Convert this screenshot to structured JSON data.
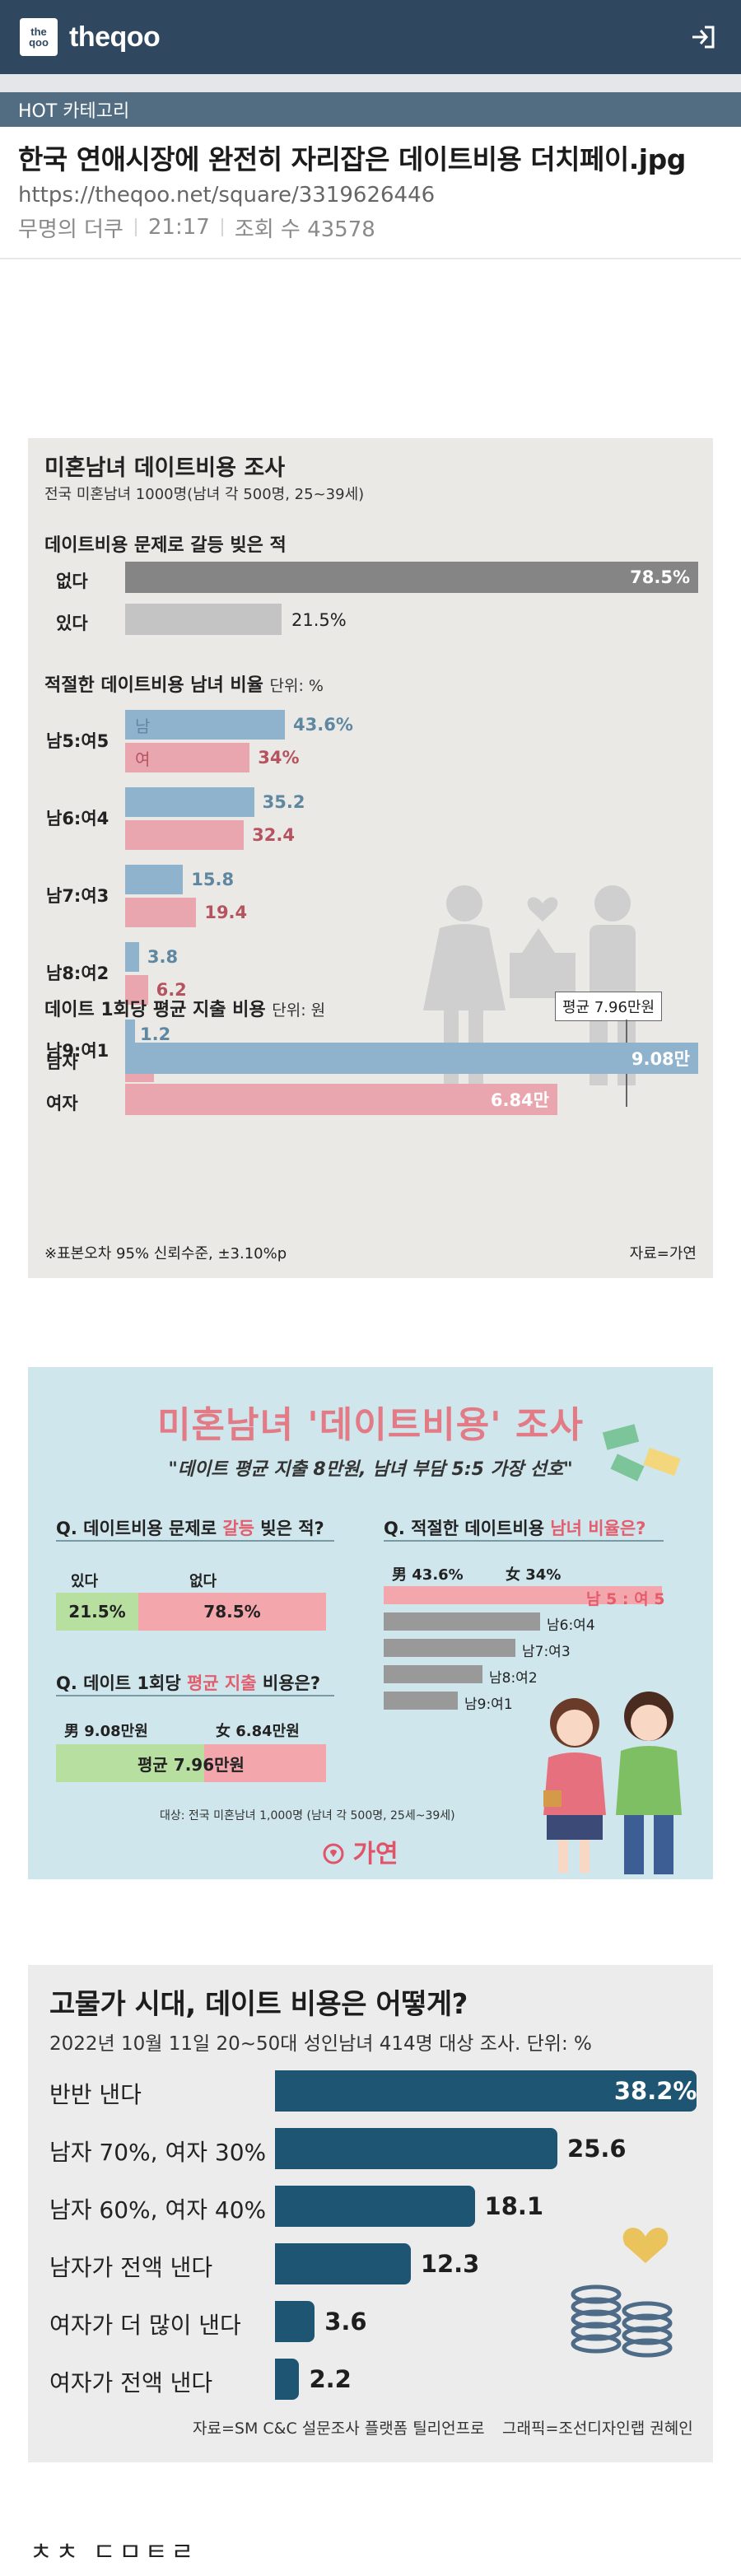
{
  "header": {
    "logo_mark_top": "the",
    "logo_mark_bottom": "qoo",
    "site_name": "theqoo",
    "login_icon": "login-arrow-icon"
  },
  "category": "HOT 카테고리",
  "post": {
    "title": "한국 연애시장에 완전히 자리잡은 데이트비용 더치페이.jpg",
    "url": "https://theqoo.net/square/3319626446",
    "author": "무명의 더쿠",
    "time": "21:17",
    "views": "조회 수 43578"
  },
  "info1": {
    "title": "미혼남녀 데이트비용 조사",
    "subtitle": "전국 미혼남녀 1000명(남녀 각 500명, 25~39세)",
    "q1": {
      "title": "데이트비용 문제로 갈등 빚은 적",
      "rows": [
        {
          "label": "없다",
          "value": "78.5%"
        },
        {
          "label": "있다",
          "value": "21.5%"
        }
      ]
    },
    "q2": {
      "title": "적절한 데이트비용 남녀 비율",
      "unit": "단위: %",
      "legend_m": "남",
      "legend_f": "여",
      "rows": [
        {
          "label": "남5:여5",
          "m": "43.6%",
          "f": "34%"
        },
        {
          "label": "남6:여4",
          "m": "35.2",
          "f": "32.4"
        },
        {
          "label": "남7:여3",
          "m": "15.8",
          "f": "19.4"
        },
        {
          "label": "남8:여2",
          "m": "3.8",
          "f": "6.2"
        },
        {
          "label": "남9:여1",
          "m": "1.2",
          "f": "7.8"
        }
      ]
    },
    "q3": {
      "title": "데이트 1회당 평균 지출 비용",
      "unit": "단위: 원",
      "avg": "평균 7.96만원",
      "rows": [
        {
          "label": "남자",
          "value": "9.08만"
        },
        {
          "label": "여자",
          "value": "6.84만"
        }
      ]
    },
    "note": "※표본오차 95% 신뢰수준, ±3.10%p",
    "source": "자료=가연"
  },
  "info2": {
    "title": "미혼남녀 '데이트비용' 조사",
    "subtitle": "\"데이트 평균 지출 8만원, 남녀 부담 5:5 가장 선호\"",
    "q1": {
      "prefix": "Q. 데이트비용 문제로 ",
      "hl": "갈등",
      "suffix": " 빚은 적?",
      "yes": "있다",
      "no": "없다",
      "yes_val": "21.5%",
      "no_val": "78.5%"
    },
    "q2": {
      "prefix": "Q. 적절한 데이트비용 ",
      "hl": "남녀 비율은?",
      "m_label": "男 43.6%",
      "f_label": "女 34%",
      "rows": [
        "남 5 : 여 5",
        "남6:여4",
        "남7:여3",
        "남8:여2",
        "남9:여1"
      ]
    },
    "q3": {
      "prefix": "Q. 데이트 1회당 ",
      "hl": "평균 지출",
      "suffix": " 비용은?",
      "m_label": "男 9.08만원",
      "f_label": "女 6.84만원",
      "avg": "평균 7.96만원"
    },
    "footnote": "대상: 전국 미혼남녀 1,000명 (남녀 각 500명, 25세~39세)",
    "brand": "가연"
  },
  "info3": {
    "title": "고물가 시대, 데이트 비용은 어떻게?",
    "subtitle": "2022년 10월 11일 20~50대 성인남녀 414명 대상 조사. 단위: %",
    "source": "자료=SM C&C 설문조사 플랫폼 틸리언프로",
    "credit": "그래픽=조선디자인랩 권혜인"
  },
  "chart_data": [
    {
      "type": "bar",
      "title": "데이트비용 문제로 갈등 빚은 적",
      "categories": [
        "없다",
        "있다"
      ],
      "values": [
        78.5,
        21.5
      ]
    },
    {
      "type": "bar",
      "title": "적절한 데이트비용 남녀 비율",
      "categories": [
        "남5:여5",
        "남6:여4",
        "남7:여3",
        "남8:여2",
        "남9:여1"
      ],
      "series": [
        {
          "name": "남",
          "values": [
            43.6,
            35.2,
            15.8,
            3.8,
            1.2
          ]
        },
        {
          "name": "여",
          "values": [
            34,
            32.4,
            19.4,
            6.2,
            7.8
          ]
        }
      ]
    },
    {
      "type": "bar",
      "title": "데이트 1회당 평균 지출 비용",
      "categories": [
        "남자",
        "여자"
      ],
      "values": [
        9.08,
        6.84
      ]
    },
    {
      "type": "bar",
      "title": "고물가 시대, 데이트 비용은 어떻게?",
      "categories": [
        "반반 낸다",
        "남자 70%, 여자 30%",
        "남자 60%, 여자 40%",
        "남자가 전액 낸다",
        "여자가 더 많이 낸다",
        "여자가 전액 낸다"
      ],
      "values": [
        38.2,
        25.6,
        18.1,
        12.3,
        3.6,
        2.2
      ],
      "value_labels": [
        "38.2%",
        "25.6",
        "18.1",
        "12.3",
        "3.6",
        "2.2"
      ]
    }
  ],
  "footer_text": "ㅊㅊ ㄷㅁㅌㄹ",
  "colors": {
    "header": "#2f4860",
    "category": "#526c82",
    "male": "#8fb3cc",
    "female": "#e9a6ae",
    "dark_bar": "#858585",
    "navy_bar": "#1e5572"
  }
}
